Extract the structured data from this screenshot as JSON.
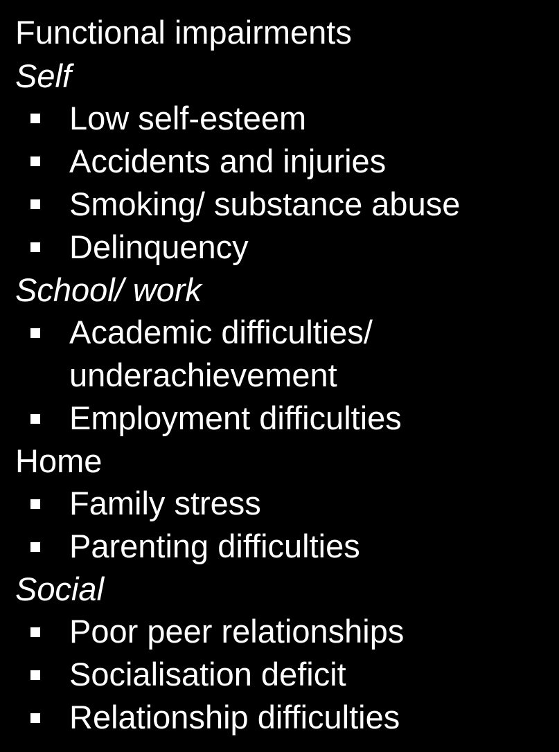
{
  "styling": {
    "background_color": "#000000",
    "text_color": "#ffffff",
    "font_family": "Verdana, Geneva, sans-serif",
    "title_fontsize": 47,
    "subheading_fontsize": 47,
    "item_fontsize": 47,
    "bullet_color": "#ffffff",
    "bullet_shape": "square",
    "bullet_size": 14
  },
  "title": "Functional impairments",
  "sections": [
    {
      "heading": "Self",
      "heading_italic": true,
      "items": [
        "Low self-esteem",
        "Accidents and injuries",
        "Smoking/ substance abuse",
        "Delinquency"
      ]
    },
    {
      "heading": "School/ work",
      "heading_italic": true,
      "items": [
        "Academic difficulties/ underachievement",
        "Employment difficulties"
      ]
    },
    {
      "heading": "Home",
      "heading_italic": false,
      "items": [
        "Family stress",
        "Parenting difficulties"
      ]
    },
    {
      "heading": "Social",
      "heading_italic": true,
      "items": [
        "Poor peer relationships",
        "Socialisation deficit",
        "Relationship difficulties"
      ]
    }
  ]
}
